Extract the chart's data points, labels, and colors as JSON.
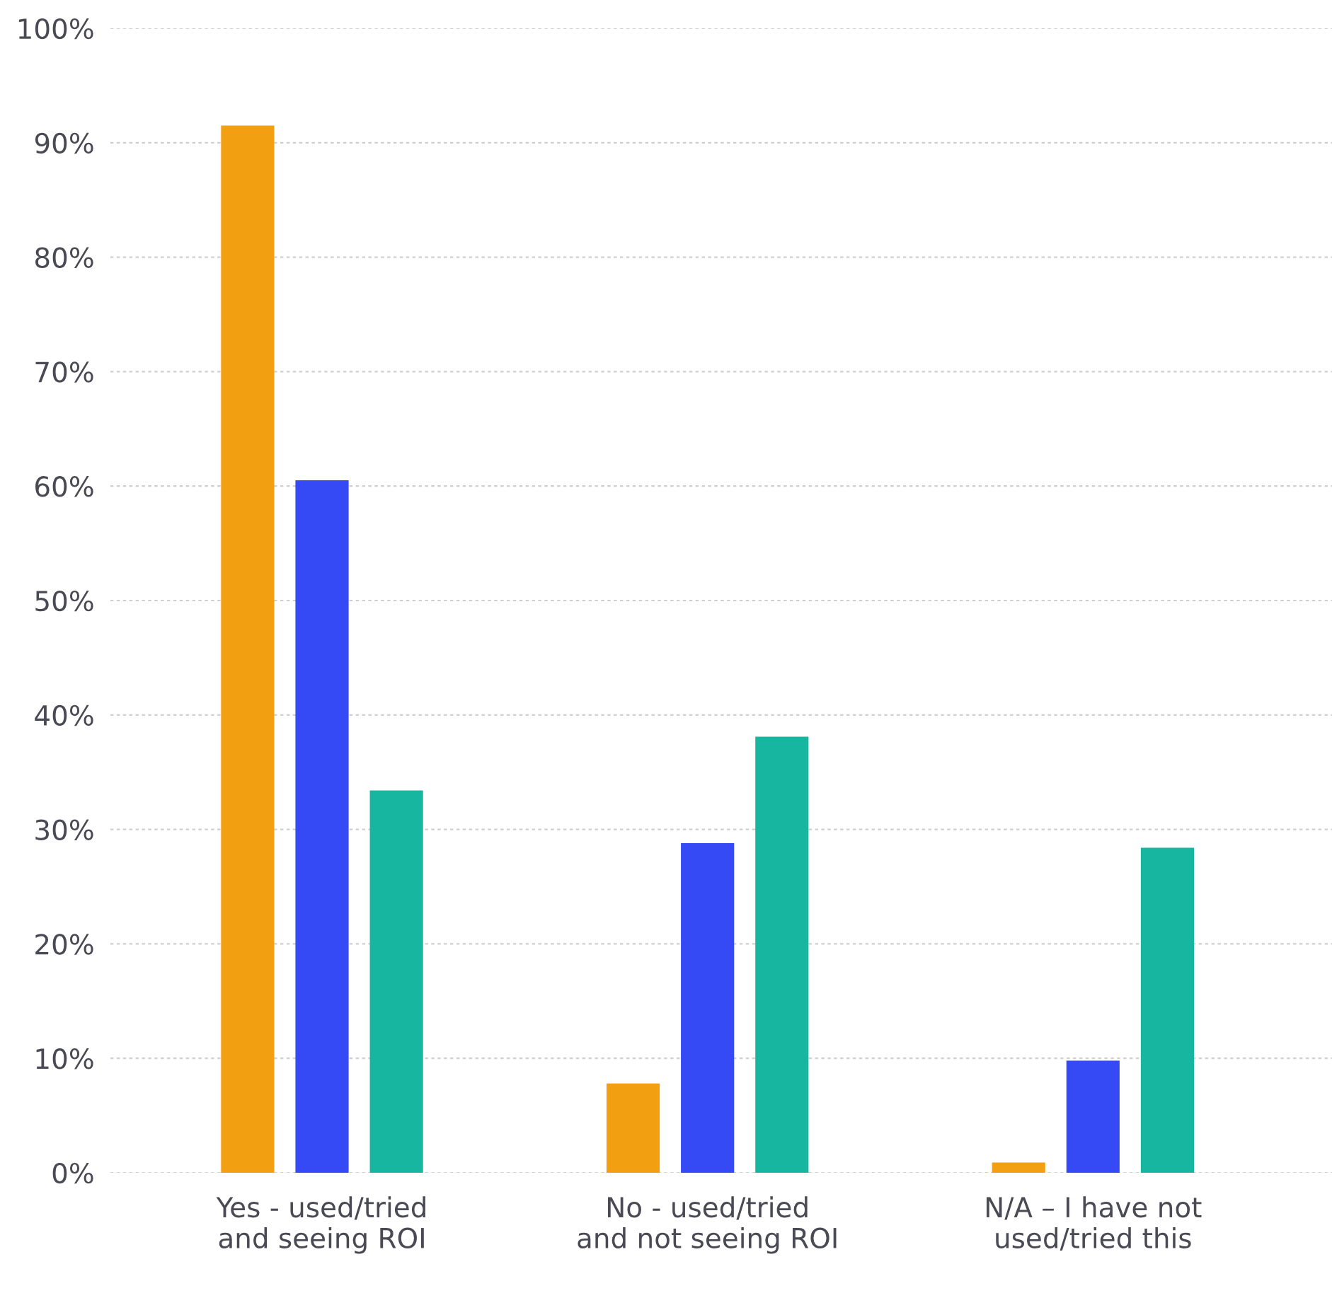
{
  "chart_data": {
    "type": "bar",
    "categories": [
      "Yes - used/tried\nand seeing ROI",
      "No - used/tried\nand not seeing ROI",
      "N/A – I have not\nused/tried this"
    ],
    "series": [
      {
        "color": "#f29f12",
        "values": [
          91.5,
          7.8,
          0.9
        ]
      },
      {
        "color": "#3549f5",
        "values": [
          60.5,
          28.8,
          9.8
        ]
      },
      {
        "color": "#16b6a1",
        "values": [
          33.4,
          38.1,
          28.4
        ]
      }
    ],
    "ylim": [
      0,
      100
    ],
    "yticks": [
      {
        "value": 0,
        "label": "0%"
      },
      {
        "value": 10,
        "label": "10%"
      },
      {
        "value": 20,
        "label": "20%"
      },
      {
        "value": 30,
        "label": "30%"
      },
      {
        "value": 40,
        "label": "40%"
      },
      {
        "value": 50,
        "label": "50%"
      },
      {
        "value": 60,
        "label": "60%"
      },
      {
        "value": 70,
        "label": "70%"
      },
      {
        "value": 80,
        "label": "80%"
      },
      {
        "value": 90,
        "label": "90%"
      },
      {
        "value": 100,
        "label": "100%"
      }
    ],
    "grid": "y"
  }
}
